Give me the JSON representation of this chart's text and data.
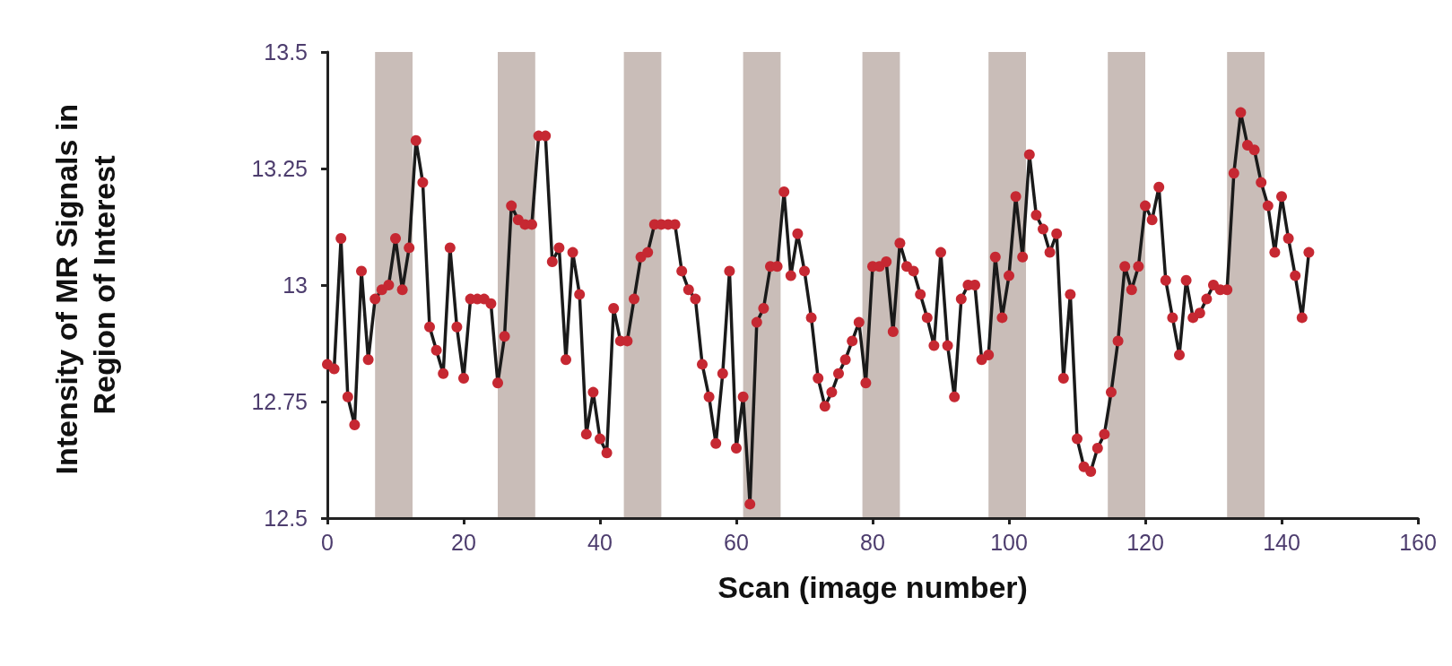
{
  "chart_data": {
    "type": "line",
    "xlabel": "Scan (image number)",
    "ylabel": "Intensity of MR Signals in Region of Interest",
    "xlim": [
      0,
      160
    ],
    "xticks": [
      0,
      20,
      40,
      60,
      80,
      100,
      120,
      140,
      160
    ],
    "ylim": [
      12.5,
      13.5
    ],
    "yticks": [
      12.5,
      12.75,
      13,
      13.25,
      13.5
    ],
    "grid": false,
    "marker": "circle",
    "line_style": "solid",
    "bands": [
      {
        "axis": "x",
        "from": 7,
        "to": 12.5,
        "color": "#c9bdb8"
      },
      {
        "axis": "x",
        "from": 25,
        "to": 30.5,
        "color": "#c9bdb8"
      },
      {
        "axis": "x",
        "from": 43.5,
        "to": 49,
        "color": "#c9bdb8"
      },
      {
        "axis": "x",
        "from": 61,
        "to": 66.5,
        "color": "#c9bdb8"
      },
      {
        "axis": "x",
        "from": 78.5,
        "to": 84,
        "color": "#c9bdb8"
      },
      {
        "axis": "x",
        "from": 97,
        "to": 102.5,
        "color": "#c9bdb8"
      },
      {
        "axis": "x",
        "from": 114.5,
        "to": 120,
        "color": "#c9bdb8"
      },
      {
        "axis": "x",
        "from": 132,
        "to": 137.5,
        "color": "#c9bdb8"
      }
    ],
    "series": [
      {
        "color": "#c62832",
        "x": [
          0,
          1,
          2,
          3,
          4,
          5,
          6,
          7,
          8,
          9,
          10,
          11,
          12,
          13,
          14,
          15,
          16,
          17,
          18,
          19,
          20,
          21,
          22,
          23,
          24,
          25,
          26,
          27,
          28,
          29,
          30,
          31,
          32,
          33,
          34,
          35,
          36,
          37,
          38,
          39,
          40,
          41,
          42,
          43,
          44,
          45,
          46,
          47,
          48,
          49,
          50,
          51,
          52,
          53,
          54,
          55,
          56,
          57,
          58,
          59,
          60,
          61,
          62,
          63,
          64,
          65,
          66,
          67,
          68,
          69,
          70,
          71,
          72,
          73,
          74,
          75,
          76,
          77,
          78,
          79,
          80,
          81,
          82,
          83,
          84,
          85,
          86,
          87,
          88,
          89,
          90,
          91,
          92,
          93,
          94,
          95,
          96,
          97,
          98,
          99,
          100,
          101,
          102,
          103,
          104,
          105,
          106,
          107,
          108,
          109,
          110,
          111,
          112,
          113,
          114,
          115,
          116,
          117,
          118,
          119,
          120,
          121,
          122,
          123,
          124,
          125,
          126,
          127,
          128,
          129,
          130,
          131,
          132,
          133,
          134,
          135,
          136,
          137,
          138,
          139,
          140,
          141,
          142,
          143,
          144
        ],
        "values": [
          12.83,
          12.82,
          13.1,
          12.76,
          12.7,
          13.03,
          12.84,
          12.97,
          12.99,
          13.0,
          13.1,
          12.99,
          13.08,
          13.31,
          13.22,
          12.91,
          12.86,
          12.81,
          13.08,
          12.91,
          12.8,
          12.97,
          12.97,
          12.97,
          12.96,
          12.79,
          12.89,
          13.17,
          13.14,
          13.13,
          13.13,
          13.32,
          13.32,
          13.05,
          13.08,
          12.84,
          13.07,
          12.98,
          12.68,
          12.77,
          12.67,
          12.64,
          12.95,
          12.88,
          12.88,
          12.97,
          13.06,
          13.07,
          13.13,
          13.13,
          13.13,
          13.13,
          13.03,
          12.99,
          12.97,
          12.83,
          12.76,
          12.66,
          12.81,
          13.03,
          12.65,
          12.76,
          12.53,
          12.92,
          12.95,
          13.04,
          13.04,
          13.2,
          13.02,
          13.11,
          13.03,
          12.93,
          12.8,
          12.74,
          12.77,
          12.81,
          12.84,
          12.88,
          12.92,
          12.79,
          13.04,
          13.04,
          13.05,
          12.9,
          13.09,
          13.04,
          13.03,
          12.98,
          12.93,
          12.87,
          13.07,
          12.87,
          12.76,
          12.97,
          13.0,
          13.0,
          12.84,
          12.85,
          13.06,
          12.93,
          13.02,
          13.19,
          13.06,
          13.28,
          13.15,
          13.12,
          13.07,
          13.11,
          12.8,
          12.98,
          12.67,
          12.61,
          12.6,
          12.65,
          12.68,
          12.77,
          12.88,
          13.04,
          12.99,
          13.04,
          13.17,
          13.14,
          13.21,
          13.01,
          12.93,
          12.85,
          13.01,
          12.93,
          12.94,
          12.97,
          13.0,
          12.99,
          12.99,
          13.24,
          13.37,
          13.3,
          13.29,
          13.22,
          13.17,
          13.07,
          13.19,
          13.1,
          13.02,
          12.93,
          13.07
        ]
      }
    ]
  }
}
